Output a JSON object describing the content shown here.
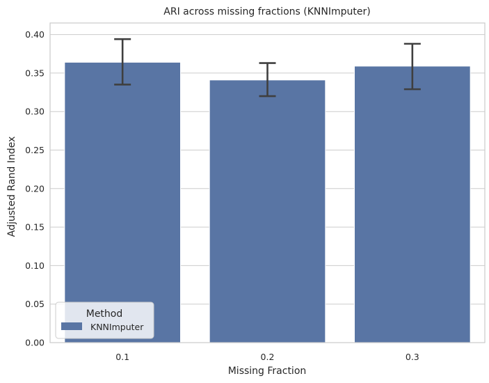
{
  "chart_data": {
    "type": "bar",
    "title": "ARI across missing fractions (KNNImputer)",
    "xlabel": "Missing Fraction",
    "ylabel": "Adjusted Rand Index",
    "categories": [
      "0.1",
      "0.2",
      "0.3"
    ],
    "series": [
      {
        "name": "KNNImputer",
        "values": [
          0.364,
          0.341,
          0.359
        ],
        "error_low": [
          0.335,
          0.32,
          0.329
        ],
        "error_high": [
          0.394,
          0.363,
          0.388
        ],
        "color": "#5975a4"
      }
    ],
    "ylim": [
      0,
      0.415
    ],
    "yticks": [
      "0.00",
      "0.05",
      "0.10",
      "0.15",
      "0.20",
      "0.25",
      "0.30",
      "0.35",
      "0.40"
    ],
    "grid": true,
    "legend": {
      "title": "Method",
      "placement": "lower-left"
    },
    "colors": {
      "grid": "#cccccc",
      "frame": "#cccccc",
      "errorbar": "#3f3f3f"
    }
  }
}
